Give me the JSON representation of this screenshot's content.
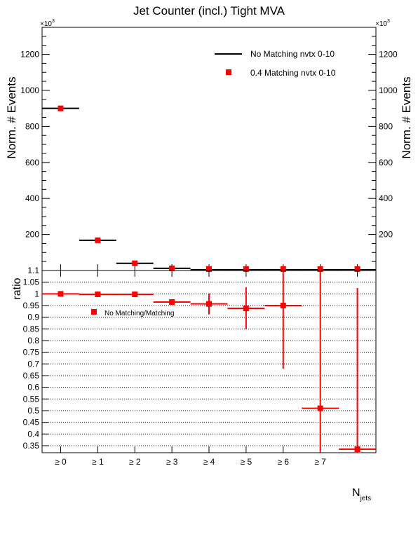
{
  "title": "Jet Counter (incl.) Tight MVA",
  "chart_data": [
    {
      "type": "scatter",
      "title": "Jet Counter (incl.) Tight MVA",
      "ylabel": "Norm. # Events",
      "ylabel_right": "Norm. # Events",
      "exponent_label": "×10",
      "exponent_power": "3",
      "ylim": [
        0,
        1350
      ],
      "yticks": [
        200,
        400,
        600,
        800,
        1000,
        1200
      ],
      "categories": [
        "≥ 0",
        "≥ 1",
        "≥ 2",
        "≥ 3",
        "≥ 4",
        "≥ 5",
        "≥ 6",
        "≥ 7",
        ""
      ],
      "legend_position": "top-right",
      "series": [
        {
          "name": "No Matching nvtx 0-10",
          "style": "line",
          "color": "#000000",
          "values": [
            900,
            168,
            40,
            12,
            4,
            3,
            1,
            0.3,
            0.1
          ]
        },
        {
          "name": "0.4 Matching nvtx 0-10",
          "style": "marker",
          "color": "#ff0000",
          "values": [
            900,
            168,
            40,
            12,
            4,
            3,
            1,
            0.3,
            0.1
          ]
        }
      ]
    },
    {
      "type": "scatter",
      "ylabel": "ratio",
      "xlabel": "N",
      "xlabel_sub": "jets",
      "ylim": [
        0.32,
        1.1
      ],
      "yticks": [
        0.35,
        0.4,
        0.45,
        0.5,
        0.55,
        0.6,
        0.65,
        0.7,
        0.75,
        0.8,
        0.85,
        0.9,
        0.95,
        1,
        1.05,
        1.1
      ],
      "grid": true,
      "legend_position": "top-left",
      "series": [
        {
          "name": "No Matching/Matching",
          "color": "#ff0000",
          "values": [
            1.0,
            0.998,
            0.998,
            0.965,
            0.957,
            0.938,
            0.95,
            0.51,
            0.335
          ],
          "err_low": [
            0.003,
            0.002,
            0.004,
            0.012,
            0.045,
            0.09,
            0.27,
            0.2,
            0.02
          ],
          "err_high": [
            0.003,
            0.002,
            0.004,
            0.012,
            0.045,
            0.09,
            0.27,
            0.6,
            0.69
          ]
        }
      ]
    }
  ]
}
